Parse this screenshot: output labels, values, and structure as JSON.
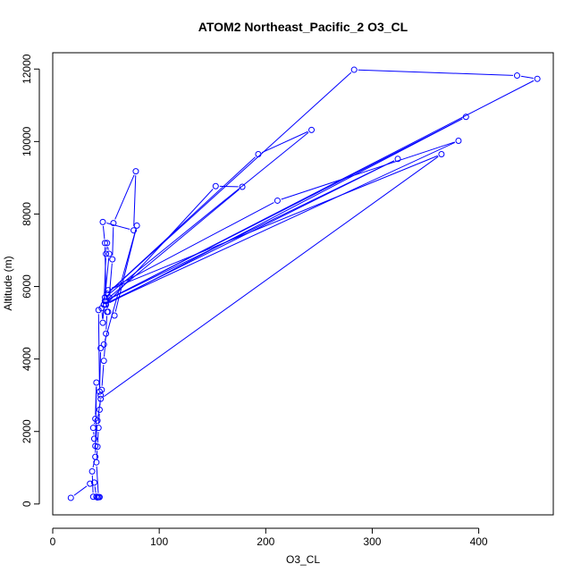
{
  "chart_data": {
    "type": "line",
    "title": "ATOM2 Northeast_Pacific_2 O3_CL",
    "xlabel": "O3_CL",
    "ylabel": "Altitude (m)",
    "xlim": [
      0,
      470
    ],
    "ylim": [
      -300,
      12450
    ],
    "x_ticks": [
      0,
      100,
      200,
      300,
      400
    ],
    "y_ticks": [
      0,
      2000,
      4000,
      6000,
      8000,
      10000,
      12000
    ],
    "grid": false,
    "marker": "open-circle",
    "series_color": "#0000FF",
    "series": [
      {
        "points": [
          [
            17,
            170
          ],
          [
            35,
            560
          ],
          [
            39,
            590
          ],
          [
            41,
            200
          ],
          [
            43,
            190
          ],
          [
            41,
            1150
          ],
          [
            42,
            1580
          ],
          [
            43,
            2100
          ],
          [
            44,
            2600
          ],
          [
            45,
            3000
          ],
          [
            46,
            3150
          ],
          [
            48,
            3950
          ],
          [
            50,
            4700
          ],
          [
            51,
            5300
          ],
          [
            53,
            5700
          ],
          [
            56,
            6750
          ],
          [
            57,
            7750
          ],
          [
            78,
            9180
          ],
          [
            76,
            7550
          ],
          [
            47,
            7780
          ],
          [
            49,
            7200
          ],
          [
            50,
            5600
          ],
          [
            52,
            5300
          ],
          [
            58,
            5200
          ],
          [
            79,
            7680
          ],
          [
            48,
            4400
          ],
          [
            45,
            4300
          ],
          [
            44,
            3100
          ],
          [
            43,
            5350
          ],
          [
            46,
            5400
          ],
          [
            47,
            5000
          ],
          [
            48,
            5500
          ],
          [
            50,
            6900
          ],
          [
            51,
            7200
          ],
          [
            53,
            6900
          ],
          [
            49,
            5700
          ],
          [
            243,
            10320
          ],
          [
            193,
            9650
          ],
          [
            51,
            5800
          ],
          [
            283,
            11980
          ],
          [
            436,
            11820
          ],
          [
            455,
            11730
          ],
          [
            49,
            5600
          ],
          [
            178,
            8750
          ],
          [
            153,
            8770
          ],
          [
            50,
            5500
          ],
          [
            388,
            10680
          ],
          [
            49,
            5600
          ],
          [
            324,
            9520
          ],
          [
            48,
            5500
          ],
          [
            381,
            10020
          ],
          [
            211,
            8370
          ],
          [
            52,
            5900
          ],
          [
            365,
            9650
          ],
          [
            45,
            2900
          ],
          [
            42,
            2300
          ],
          [
            40,
            1600
          ],
          [
            39,
            1800
          ],
          [
            38,
            2100
          ],
          [
            40,
            2350
          ],
          [
            41,
            3350
          ],
          [
            40,
            1300
          ],
          [
            37,
            900
          ],
          [
            38,
            200
          ],
          [
            42,
            180
          ],
          [
            44,
            190
          ]
        ]
      }
    ]
  }
}
